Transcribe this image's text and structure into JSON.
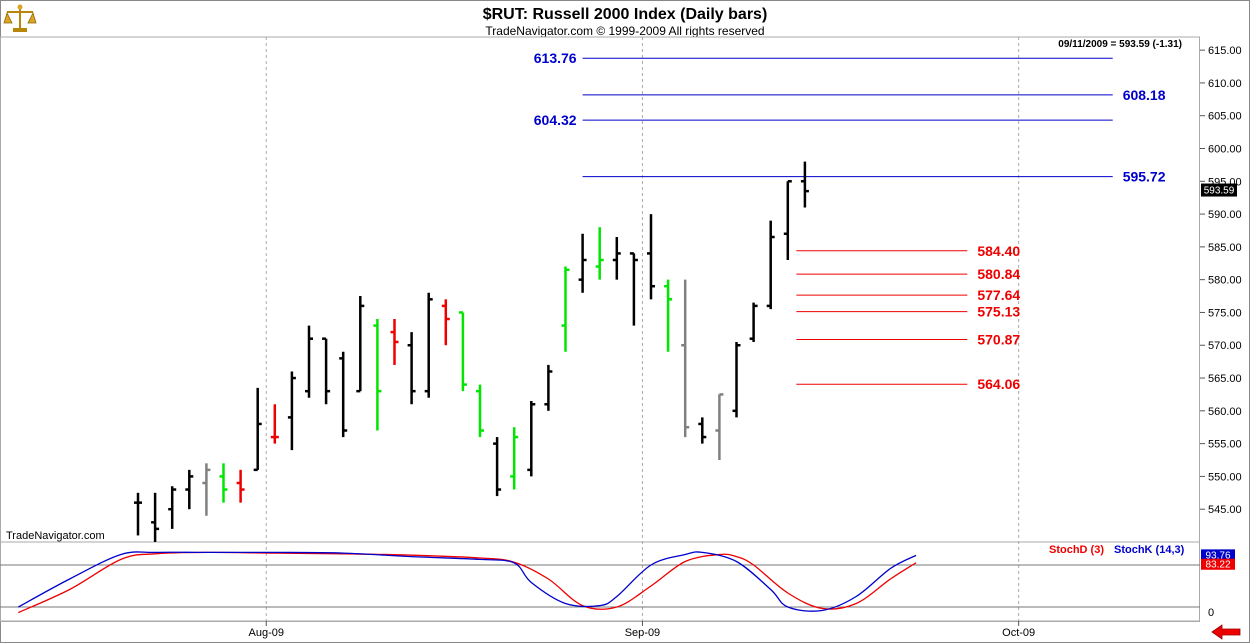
{
  "header": {
    "title": "$RUT:  Russell 2000 Index  (Daily bars)",
    "subtitle": "TradeNavigator.com © 1999-2009 All rights reserved",
    "quote": "09/11/2009 = 593.59 (-1.31)",
    "watermark": "TradeNavigator.com",
    "logo_icon": "scales-icon",
    "nav_icon": "left-arrow-icon"
  },
  "colors": {
    "up": "#00e600",
    "down": "#ee0000",
    "neutral": "#000000",
    "gray": "#808080",
    "blue_level": "#0000cc",
    "red_level": "#ee0000",
    "stoch_d": "#ee0000",
    "stoch_k": "#0000cc"
  },
  "chart_data": {
    "type": "ohlc",
    "price_axis": {
      "range": [
        540,
        617
      ],
      "ticks": [
        "545.00",
        "550.00",
        "555.00",
        "560.00",
        "565.00",
        "570.00",
        "575.00",
        "580.00",
        "585.00",
        "590.00",
        "595.00",
        "600.00",
        "605.00",
        "610.00",
        "615.00"
      ],
      "last_price_label": "593.59",
      "last_price": 593.59
    },
    "x_axis": {
      "labels": [
        {
          "text": "Aug-09",
          "bar": 7.5
        },
        {
          "text": "Sep-09",
          "bar": 29.5
        },
        {
          "text": "Oct-09",
          "bar": 51.5
        }
      ],
      "bar_count": 58
    },
    "bars": [
      {
        "o": 546,
        "h": 547.5,
        "l": 541,
        "c": 546,
        "col": "neutral"
      },
      {
        "o": 543,
        "h": 547.5,
        "l": 540,
        "c": 542,
        "col": "neutral"
      },
      {
        "o": 545,
        "h": 548.5,
        "l": 542,
        "c": 548,
        "col": "neutral"
      },
      {
        "o": 548,
        "h": 551,
        "l": 545,
        "c": 550,
        "col": "neutral"
      },
      {
        "o": 549,
        "h": 552,
        "l": 544,
        "c": 551,
        "col": "gray"
      },
      {
        "o": 550,
        "h": 552,
        "l": 546,
        "c": 548,
        "col": "up"
      },
      {
        "o": 549,
        "h": 551,
        "l": 546,
        "c": 548,
        "col": "down"
      },
      {
        "o": 551,
        "h": 563.5,
        "l": 551,
        "c": 558,
        "col": "neutral"
      },
      {
        "o": 556,
        "h": 561,
        "l": 555,
        "c": 556,
        "col": "down"
      },
      {
        "o": 559,
        "h": 566,
        "l": 554,
        "c": 565,
        "col": "neutral"
      },
      {
        "o": 563,
        "h": 573,
        "l": 562,
        "c": 571,
        "col": "neutral"
      },
      {
        "o": 571,
        "h": 571,
        "l": 561,
        "c": 563,
        "col": "neutral"
      },
      {
        "o": 568,
        "h": 569,
        "l": 556,
        "c": 557,
        "col": "neutral"
      },
      {
        "o": 563,
        "h": 577.5,
        "l": 563,
        "c": 576,
        "col": "neutral"
      },
      {
        "o": 573,
        "h": 574,
        "l": 557,
        "c": 563,
        "col": "up"
      },
      {
        "o": 572,
        "h": 574,
        "l": 567,
        "c": 570.5,
        "col": "down"
      },
      {
        "o": 570,
        "h": 572,
        "l": 561,
        "c": 563,
        "col": "neutral"
      },
      {
        "o": 563,
        "h": 578,
        "l": 562,
        "c": 577,
        "col": "neutral"
      },
      {
        "o": 576,
        "h": 577,
        "l": 570,
        "c": 574,
        "col": "down"
      },
      {
        "o": 575,
        "h": 575,
        "l": 563,
        "c": 564,
        "col": "up"
      },
      {
        "o": 563,
        "h": 564,
        "l": 556,
        "c": 557,
        "col": "up"
      },
      {
        "o": 555,
        "h": 556,
        "l": 547,
        "c": 548,
        "col": "neutral"
      },
      {
        "o": 550,
        "h": 557.5,
        "l": 548,
        "c": 556,
        "col": "up"
      },
      {
        "o": 551,
        "h": 561.5,
        "l": 550,
        "c": 561,
        "col": "neutral"
      },
      {
        "o": 561,
        "h": 567,
        "l": 560,
        "c": 566,
        "col": "neutral"
      },
      {
        "o": 573,
        "h": 582,
        "l": 569,
        "c": 581.5,
        "col": "up"
      },
      {
        "o": 580,
        "h": 587,
        "l": 578,
        "c": 583,
        "col": "neutral"
      },
      {
        "o": 582,
        "h": 588,
        "l": 580,
        "c": 583,
        "col": "up"
      },
      {
        "o": 583,
        "h": 586.5,
        "l": 580,
        "c": 584,
        "col": "neutral"
      },
      {
        "o": 584,
        "h": 584,
        "l": 573,
        "c": 583,
        "col": "neutral"
      },
      {
        "o": 584,
        "h": 590,
        "l": 577,
        "c": 579,
        "col": "neutral"
      },
      {
        "o": 579,
        "h": 580,
        "l": 569,
        "c": 577,
        "col": "up"
      },
      {
        "o": 570,
        "h": 580,
        "l": 556,
        "c": 557.5,
        "col": "gray"
      },
      {
        "o": 558,
        "h": 559,
        "l": 555,
        "c": 556,
        "col": "neutral"
      },
      {
        "o": 557,
        "h": 562.5,
        "l": 552.5,
        "c": 562.5,
        "col": "gray"
      },
      {
        "o": 560,
        "h": 570.5,
        "l": 559,
        "c": 570,
        "col": "neutral"
      },
      {
        "o": 571,
        "h": 576.5,
        "l": 570.5,
        "c": 576,
        "col": "neutral"
      },
      {
        "o": 576,
        "h": 589,
        "l": 575.5,
        "c": 586.5,
        "col": "neutral"
      },
      {
        "o": 587,
        "h": 595,
        "l": 583,
        "c": 595,
        "col": "neutral"
      },
      {
        "o": 595,
        "h": 598,
        "l": 591,
        "c": 593.5,
        "col": "neutral"
      }
    ],
    "levels": [
      {
        "price": 613.76,
        "label": "613.76",
        "color": "blue",
        "from": 26,
        "to": 57,
        "label_side": "left"
      },
      {
        "price": 608.18,
        "label": "608.18",
        "color": "blue",
        "from": 26,
        "to": 57,
        "label_side": "right"
      },
      {
        "price": 604.32,
        "label": "604.32",
        "color": "blue",
        "from": 26,
        "to": 57,
        "label_side": "left"
      },
      {
        "price": 595.72,
        "label": "595.72",
        "color": "blue",
        "from": 26,
        "to": 57,
        "label_side": "right"
      },
      {
        "price": 584.4,
        "label": "584.40",
        "color": "red",
        "from": 38.5,
        "to": 48.5,
        "label_side": "right"
      },
      {
        "price": 580.84,
        "label": "580.84",
        "color": "red",
        "from": 38.5,
        "to": 48.5,
        "label_side": "right"
      },
      {
        "price": 577.64,
        "label": "577.64",
        "color": "red",
        "from": 38.5,
        "to": 48.5,
        "label_side": "right"
      },
      {
        "price": 575.13,
        "label": "575.13",
        "color": "red",
        "from": 38.5,
        "to": 48.5,
        "label_side": "right"
      },
      {
        "price": 570.87,
        "label": "570.87",
        "color": "red",
        "from": 38.5,
        "to": 48.5,
        "label_side": "right"
      },
      {
        "price": 564.06,
        "label": "564.06",
        "color": "red",
        "from": 38.5,
        "to": 48.5,
        "label_side": "right"
      }
    ],
    "stochastic": {
      "legend": [
        {
          "name": "StochD (3)",
          "color": "stoch_d"
        },
        {
          "name": "StochK (14,3)",
          "color": "stoch_k"
        }
      ],
      "range": [
        0,
        110
      ],
      "ticks": [
        "0"
      ],
      "ref_lines": [
        80,
        20
      ],
      "last_k": 93.76,
      "last_k_label": "93.76",
      "last_d": 83.22,
      "last_d_label": "83.22",
      "k_points": [
        [
          -7,
          20
        ],
        [
          -4,
          60
        ],
        [
          -1,
          95
        ],
        [
          1,
          98
        ],
        [
          4,
          98
        ],
        [
          8,
          98
        ],
        [
          12,
          97
        ],
        [
          16,
          92
        ],
        [
          20,
          88
        ],
        [
          22,
          83
        ],
        [
          23,
          55
        ],
        [
          25,
          25
        ],
        [
          27,
          22
        ],
        [
          28,
          35
        ],
        [
          30,
          80
        ],
        [
          32,
          95
        ],
        [
          33,
          98
        ],
        [
          35,
          85
        ],
        [
          37,
          45
        ],
        [
          38,
          20
        ],
        [
          40,
          15
        ],
        [
          42,
          35
        ],
        [
          44,
          75
        ],
        [
          45.5,
          93.76
        ]
      ],
      "d_points": [
        [
          -7,
          12
        ],
        [
          -4,
          45
        ],
        [
          -1,
          88
        ],
        [
          1,
          96
        ],
        [
          4,
          98
        ],
        [
          8,
          97
        ],
        [
          12,
          96
        ],
        [
          16,
          94
        ],
        [
          20,
          90
        ],
        [
          22,
          84
        ],
        [
          24,
          60
        ],
        [
          26,
          22
        ],
        [
          28,
          20
        ],
        [
          30,
          50
        ],
        [
          32,
          85
        ],
        [
          34,
          95
        ],
        [
          35,
          92
        ],
        [
          36,
          80
        ],
        [
          38,
          40
        ],
        [
          40,
          18
        ],
        [
          42,
          25
        ],
        [
          44,
          60
        ],
        [
          45.5,
          83.22
        ]
      ]
    }
  }
}
